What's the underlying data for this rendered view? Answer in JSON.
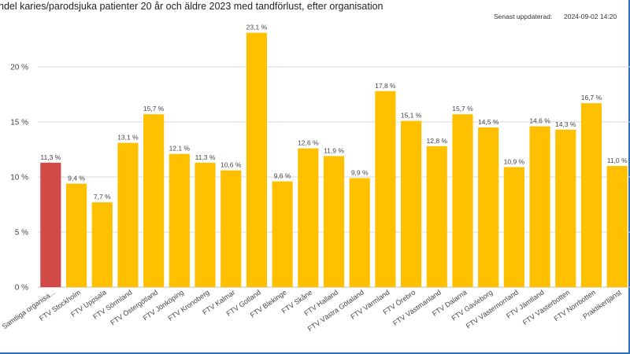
{
  "header": {
    "title": "ndel karies/parodsjuka patienter 20 år och äldre 2023 med tandförlust, efter organisation",
    "updated_label": "Senast uppdaterad:",
    "updated_value": "2024-09-02 14:20"
  },
  "colors": {
    "highlight": "#d24a45",
    "bar": "#ffc000",
    "grid": "#d9d9d9",
    "frame": "#2f6fb3"
  },
  "chart_data": {
    "type": "bar",
    "title": "ndel karies/parodsjuka patienter 20 år och äldre 2023 med tandförlust, efter organisation",
    "xlabel": "",
    "ylabel": "",
    "ylim": [
      0,
      25
    ],
    "yticks": [
      0,
      5,
      10,
      15,
      20
    ],
    "ytick_labels": [
      "0 %",
      "5 %",
      "10 %",
      "15 %",
      "20 %"
    ],
    "grid": true,
    "categories": [
      "Samtliga organisa...",
      "FTV Stockholm",
      "FTV Uppsala",
      "FTV Sörmland",
      "FTV Östergötland",
      "FTV Jönköping",
      "FTV Kronoberg",
      "FTV Kalmar",
      "FTV Gotland",
      "FTV Blekinge",
      "FTV Skåne",
      "FTV Halland",
      "FTV Västra Götaland",
      "FTV Värmland",
      "FTV Örebro",
      "FTV Västmanland",
      "FTV Dalarna",
      "FTV Gävleborg",
      "FTV Västernorrland",
      "FTV Jämtland",
      "FTV Västerbotten",
      "FTV Norrbotten",
      "Praktikertjänst"
    ],
    "values": [
      11.3,
      9.4,
      7.7,
      13.1,
      15.7,
      12.1,
      11.3,
      10.6,
      23.1,
      9.6,
      12.6,
      11.9,
      9.9,
      17.8,
      15.1,
      12.8,
      15.7,
      14.5,
      10.9,
      14.6,
      14.3,
      16.7,
      11.0
    ],
    "value_labels": [
      "11,3 %",
      "9,4 %",
      "7,7 %",
      "13,1 %",
      "15,7 %",
      "12,1 %",
      "11,3 %",
      "10,6 %",
      "23,1 %",
      "9,6 %",
      "12,6 %",
      "11,9 %",
      "9,9 %",
      "17,8 %",
      "15,1 %",
      "12,8 %",
      "15,7 %",
      "14,5 %",
      "10,9 %",
      "14,6 %",
      "14,3 %",
      "16,7 %",
      "11,0 %"
    ],
    "highlight_index": 0
  }
}
